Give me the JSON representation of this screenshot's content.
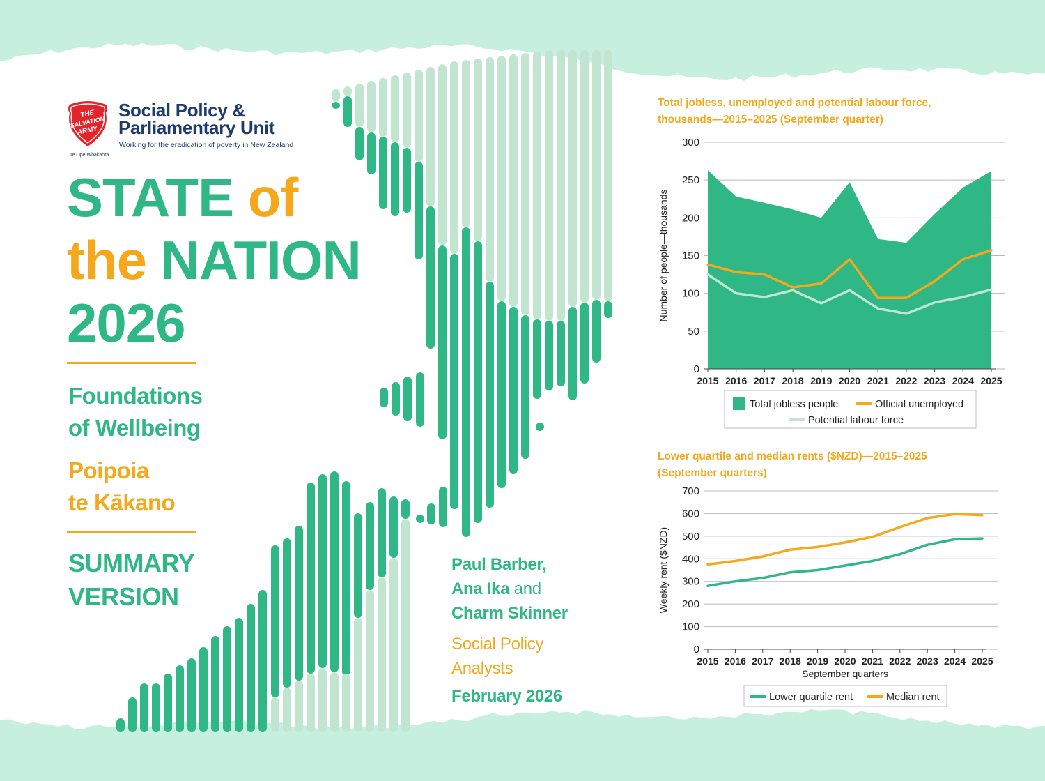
{
  "org": {
    "shield_text": [
      "THE",
      "SALVATION",
      "ARMY"
    ],
    "shield_subtext": "Te Ope Whakaora",
    "name_line1": "Social Policy &",
    "name_line2": "Parliamentary Unit",
    "tagline": "Working for the eradication of poverty in New Zealand"
  },
  "title": {
    "line1a": "STATE",
    "line1b": "of",
    "line2a": "the",
    "line2b": "NATION",
    "line3": "2026"
  },
  "subtitle": {
    "foundations_1": "Foundations",
    "foundations_2": "of Wellbeing",
    "poipoia_1": "Poipoia",
    "poipoia_2": "te Kākano",
    "summary_1": "SUMMARY",
    "summary_2": "VERSION"
  },
  "authors": {
    "line1": "Paul Barber,",
    "line2a": "Ana Ika",
    "line2b": "and",
    "line3": "Charm Skinner",
    "role1": "Social Policy",
    "role2": "Analysts",
    "date": "February 2026"
  },
  "colors": {
    "accent_green": "#2fb785",
    "accent_orange": "#f5a81c",
    "light_green": "#c2e5d2",
    "navy": "#1e3a6e",
    "shield_red": "#e3242b",
    "background_mint": "#c6efdf"
  },
  "chart_data": [
    {
      "type": "area",
      "title_line1": "Total jobless, unemployed and potential labour force,",
      "title_line2": "thousands—2015–2025 (September quarter)",
      "xlabel": "",
      "ylabel": "Number of people—thousands",
      "x": [
        "2015",
        "2016",
        "2017",
        "2018",
        "2019",
        "2020",
        "2021",
        "2022",
        "2023",
        "2024",
        "2025"
      ],
      "ylim": [
        0,
        300
      ],
      "yticks": [
        0,
        50,
        100,
        150,
        200,
        250,
        300
      ],
      "grid": true,
      "legend_position": "bottom",
      "series": [
        {
          "name": "Total jobless people",
          "kind": "area",
          "color": "#2fb785",
          "values": [
            263,
            228,
            220,
            211,
            200,
            247,
            172,
            167,
            205,
            240,
            262
          ]
        },
        {
          "name": "Official unemployed",
          "kind": "line",
          "color": "#f5a81c",
          "values": [
            138,
            128,
            125,
            108,
            113,
            145,
            94,
            94,
            116,
            145,
            157
          ]
        },
        {
          "name": "Potential labour force",
          "kind": "line",
          "color": "#c2e5d2",
          "values": [
            125,
            100,
            95,
            104,
            87,
            104,
            80,
            73,
            88,
            95,
            105
          ]
        }
      ]
    },
    {
      "type": "line",
      "title_line1": "Lower quartile and median rents ($NZD)—2015–2025",
      "title_line2": "(September quarters)",
      "xlabel": "September quarters",
      "ylabel": "Weekly rent ($NZD)",
      "x": [
        "2015",
        "2016",
        "2017",
        "2018",
        "2019",
        "2020",
        "2021",
        "2022",
        "2023",
        "2024",
        "2025"
      ],
      "ylim": [
        0,
        700
      ],
      "yticks": [
        0,
        100,
        200,
        300,
        400,
        500,
        600,
        700
      ],
      "grid": true,
      "legend_position": "bottom",
      "series": [
        {
          "name": "Lower quartile rent",
          "kind": "line",
          "color": "#2fb785",
          "values": [
            280,
            300,
            315,
            340,
            350,
            370,
            390,
            420,
            462,
            486,
            490
          ]
        },
        {
          "name": "Median rent",
          "kind": "line",
          "color": "#f5a81c",
          "values": [
            375,
            390,
            410,
            440,
            452,
            472,
            497,
            540,
            580,
            598,
            593
          ]
        }
      ]
    }
  ]
}
